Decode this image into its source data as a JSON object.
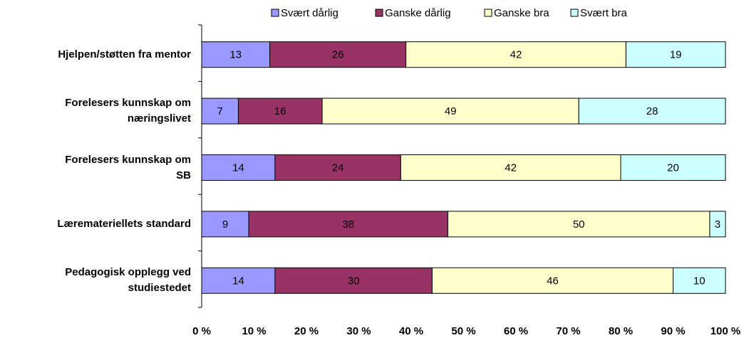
{
  "chart_data": {
    "type": "stacked-barh",
    "categories": [
      "Hjelpen/støtten fra mentor",
      "Forelesers kunnskap om\nnæringslivet",
      "Forelesers kunnskap om\nSB",
      "Læremateriellets standard",
      "Pedagogisk opplegg ved\nstudiestedet"
    ],
    "series": [
      {
        "name": "Svært dårlig",
        "color": "#9999ff",
        "values": [
          13,
          7,
          14,
          9,
          14
        ]
      },
      {
        "name": "Ganske dårlig",
        "color": "#993366",
        "values": [
          26,
          16,
          24,
          38,
          30
        ]
      },
      {
        "name": "Ganske bra",
        "color": "#ffffcc",
        "values": [
          42,
          49,
          42,
          50,
          46
        ]
      },
      {
        "name": "Svært bra",
        "color": "#ccffff",
        "values": [
          19,
          28,
          20,
          3,
          10
        ]
      }
    ],
    "xlim": [
      0,
      100
    ],
    "xticks": [
      {
        "value": 0,
        "label": "0 %"
      },
      {
        "value": 10,
        "label": "10 %"
      },
      {
        "value": 20,
        "label": "20 %"
      },
      {
        "value": 30,
        "label": "30 %"
      },
      {
        "value": 40,
        "label": "40 %"
      },
      {
        "value": 50,
        "label": "50 %"
      },
      {
        "value": 60,
        "label": "60 %"
      },
      {
        "value": 70,
        "label": "70 %"
      },
      {
        "value": 80,
        "label": "80 %"
      },
      {
        "value": 90,
        "label": "90 %"
      },
      {
        "value": 100,
        "label": "100 %"
      }
    ],
    "legend": "top"
  }
}
